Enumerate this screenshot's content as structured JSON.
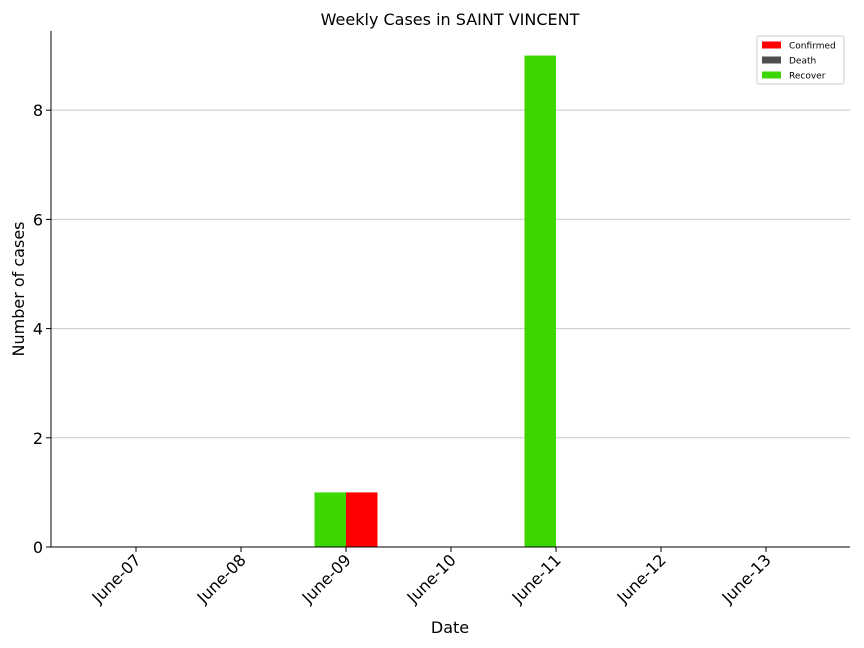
{
  "chart_data": {
    "type": "bar",
    "title": "Weekly Cases in SAINT VINCENT",
    "xlabel": "Date",
    "ylabel": "Number of cases",
    "categories": [
      "June-07",
      "June-08",
      "June-09",
      "June-10",
      "June-11",
      "June-12",
      "June-13"
    ],
    "series": [
      {
        "name": "Confirmed",
        "color": "#ff0000",
        "values": [
          0,
          0,
          1,
          0,
          0,
          0,
          0
        ]
      },
      {
        "name": "Death",
        "color": "#4d4d4d",
        "values": [
          0,
          0,
          0,
          0,
          0,
          0,
          0
        ]
      },
      {
        "name": "Recover",
        "color": "#3dd600",
        "values": [
          0,
          0,
          1,
          0,
          9,
          0,
          0
        ]
      }
    ],
    "ylim": [
      0,
      9.45
    ],
    "yticks": [
      0,
      2,
      4,
      6,
      8
    ],
    "grid": "horizontal",
    "legend": "top-right"
  }
}
